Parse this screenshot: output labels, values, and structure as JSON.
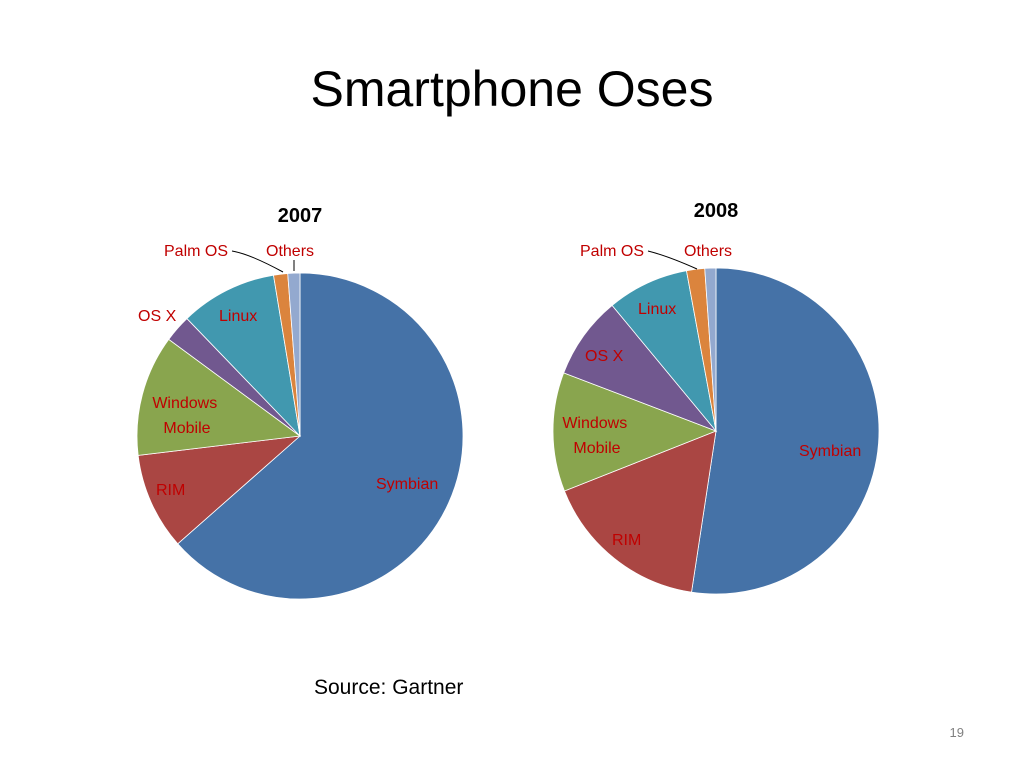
{
  "slide": {
    "title": "Smartphone Oses",
    "source": "Source: Gartner",
    "page_number": "19"
  },
  "chart_data": [
    {
      "type": "pie",
      "title": "2007",
      "slices": [
        {
          "label": "Symbian",
          "value": 63.5,
          "color": "#4572A7"
        },
        {
          "label": "RIM",
          "value": 9.6,
          "color": "#AA4643"
        },
        {
          "label": "Windows Mobile",
          "value": 12.0,
          "color": "#89A54E"
        },
        {
          "label": "OS X",
          "value": 2.7,
          "color": "#71588F"
        },
        {
          "label": "Linux",
          "value": 9.6,
          "color": "#4198AF"
        },
        {
          "label": "Palm OS",
          "value": 1.4,
          "color": "#DB843D"
        },
        {
          "label": "Others",
          "value": 1.2,
          "color": "#93A9CF"
        }
      ]
    },
    {
      "type": "pie",
      "title": "2008",
      "slices": [
        {
          "label": "Symbian",
          "value": 52.4,
          "color": "#4572A7"
        },
        {
          "label": "RIM",
          "value": 16.6,
          "color": "#AA4643"
        },
        {
          "label": "Windows Mobile",
          "value": 11.8,
          "color": "#89A54E"
        },
        {
          "label": "OS X",
          "value": 8.2,
          "color": "#71588F"
        },
        {
          "label": "Linux",
          "value": 8.1,
          "color": "#4198AF"
        },
        {
          "label": "Palm OS",
          "value": 1.8,
          "color": "#DB843D"
        },
        {
          "label": "Others",
          "value": 1.1,
          "color": "#93A9CF"
        }
      ]
    }
  ]
}
